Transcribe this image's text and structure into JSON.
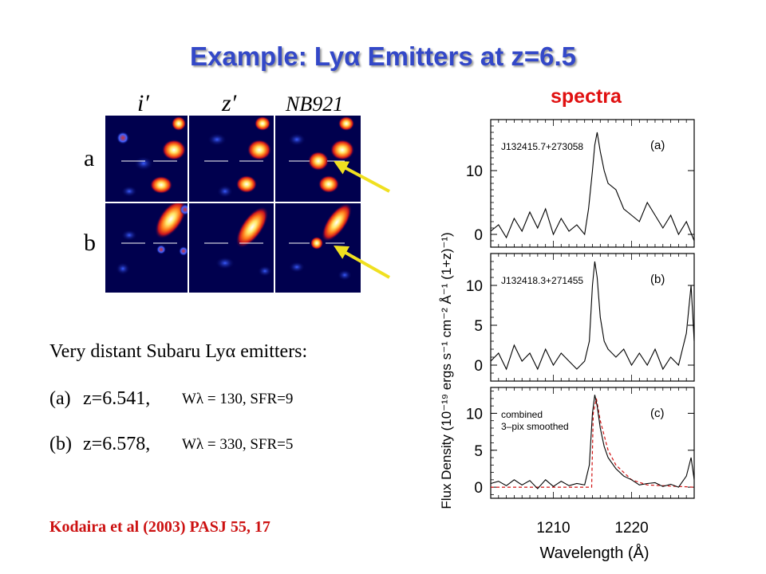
{
  "slide": {
    "title": "Example: Lyα Emitters at z=6.5",
    "spectra_label": "spectra",
    "bands": [
      "i′",
      "z′",
      "NB921"
    ],
    "rows": [
      "a",
      "b"
    ],
    "text_heading": "Very distant Subaru Lyα emitters:",
    "items": [
      {
        "label": "(a)",
        "z": "z=6.541,",
        "detail": "Wλ = 130, SFR=9"
      },
      {
        "label": "(b)",
        "z": "z=6.578,",
        "detail": "Wλ = 330, SFR=5"
      }
    ],
    "reference": "Kodaira et al (2003) PASJ 55, 17",
    "arrow_color": "#f0e020"
  },
  "chart_data": {
    "type": "line",
    "xlabel": "Wavelength (Å)",
    "ylabel": "Flux Density (10⁻¹⁹ ergs s⁻¹ cm⁻² Å⁻¹ (1+z)⁻¹)",
    "xlim": [
      1202,
      1228
    ],
    "x_ticks": [
      1210,
      1220
    ],
    "panels": [
      {
        "tag": "(a)",
        "name": "J132415.7+273058",
        "ylim": [
          -2,
          18
        ],
        "y_ticks": [
          0,
          10
        ],
        "x": [
          1202,
          1203,
          1204,
          1205,
          1206,
          1207,
          1208,
          1209,
          1210,
          1211,
          1212,
          1213,
          1214,
          1214.5,
          1215,
          1215.3,
          1215.6,
          1216,
          1216.5,
          1217,
          1218,
          1219,
          1220,
          1221,
          1222,
          1223,
          1224,
          1225,
          1226,
          1227,
          1228
        ],
        "y": [
          0.5,
          1.5,
          -0.5,
          2.5,
          0.5,
          3.5,
          1,
          4,
          0,
          2.5,
          0.5,
          1.5,
          0,
          4,
          10,
          14,
          16,
          13,
          10,
          8,
          7,
          4,
          3,
          2,
          5,
          3,
          1,
          3,
          0,
          2,
          -1
        ]
      },
      {
        "tag": "(b)",
        "name": "J132418.3+271455",
        "ylim": [
          -2,
          14
        ],
        "y_ticks": [
          0,
          5,
          10
        ],
        "x": [
          1202,
          1203,
          1204,
          1205,
          1206,
          1207,
          1208,
          1209,
          1210,
          1211,
          1212,
          1213,
          1214,
          1214.6,
          1215,
          1215.3,
          1215.6,
          1216,
          1216.5,
          1217,
          1218,
          1219,
          1220,
          1221,
          1222,
          1223,
          1224,
          1225,
          1226,
          1227,
          1227.6,
          1228
        ],
        "y": [
          0.5,
          1.5,
          -0.5,
          2.5,
          0.5,
          1.5,
          -0.5,
          2,
          0,
          1.5,
          0.5,
          -0.5,
          0.5,
          3,
          10,
          13,
          11,
          6,
          3,
          2,
          1,
          2,
          0,
          1.5,
          0,
          2,
          -0.5,
          1,
          0,
          4,
          10,
          3
        ]
      },
      {
        "tag": "(c)",
        "name": "combined",
        "note": "3–pix smoothed",
        "ylim": [
          -1.5,
          13.5
        ],
        "y_ticks": [
          0,
          5,
          10
        ],
        "x": [
          1202,
          1203,
          1204,
          1205,
          1206,
          1207,
          1208,
          1209,
          1210,
          1211,
          1212,
          1213,
          1214,
          1214.6,
          1215,
          1215.3,
          1215.6,
          1216,
          1216.5,
          1217,
          1218,
          1219,
          1220,
          1221,
          1222,
          1223,
          1224,
          1225,
          1226,
          1227,
          1227.6,
          1228
        ],
        "y": [
          0.5,
          0.8,
          0.2,
          1,
          0.3,
          0.9,
          -0.2,
          1,
          0.1,
          0.8,
          0.2,
          0.5,
          0.3,
          3,
          10,
          12.5,
          11,
          8,
          5.5,
          4,
          2.5,
          1.5,
          1,
          0.3,
          0.5,
          0.6,
          0.1,
          0.4,
          0,
          1.5,
          4,
          1
        ],
        "model_x": [
          1202,
          1214.9,
          1215.1,
          1215.5,
          1216,
          1217,
          1218,
          1220,
          1222,
          1228
        ],
        "model_y": [
          0,
          0,
          10,
          12,
          9,
          5,
          3,
          1,
          0.3,
          0
        ]
      }
    ]
  }
}
